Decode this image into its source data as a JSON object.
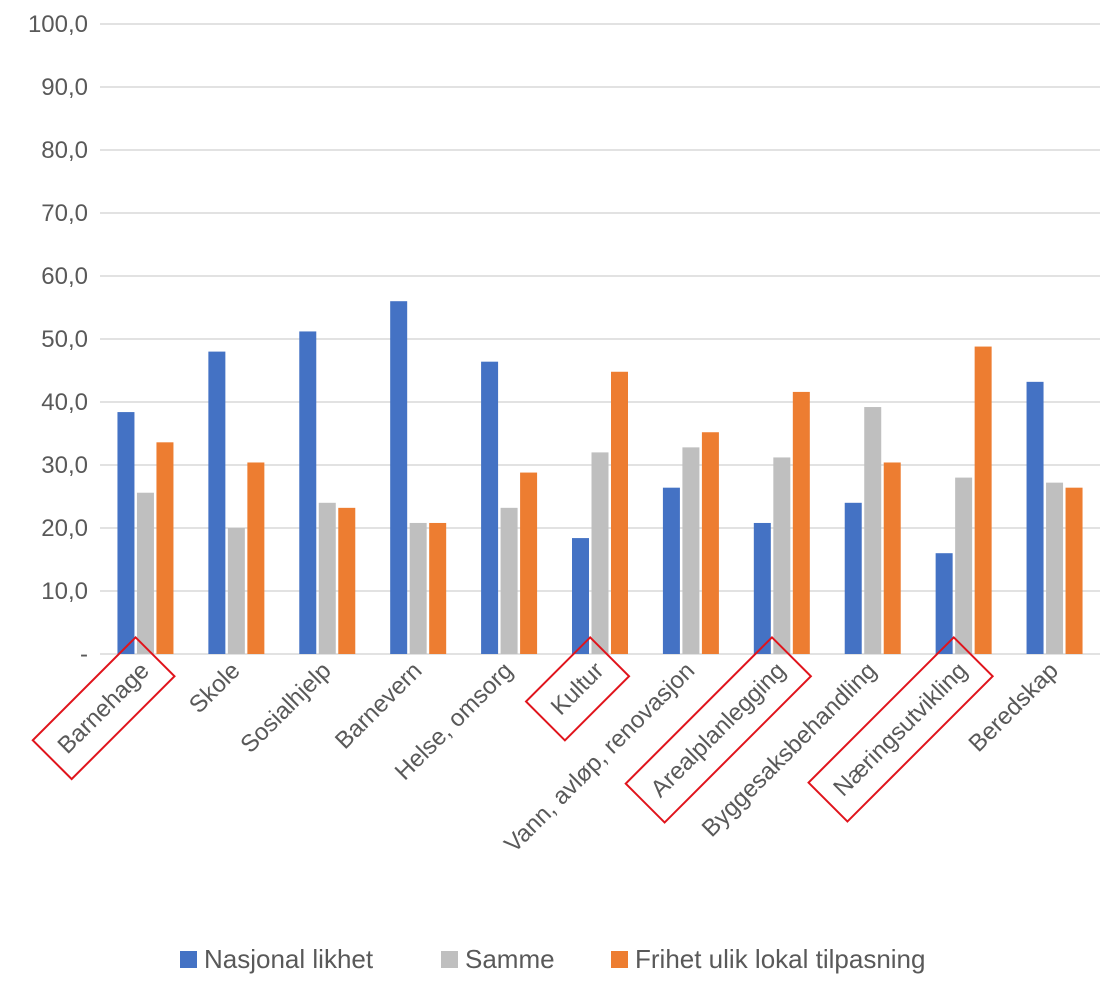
{
  "chart_data": {
    "type": "bar",
    "title": "",
    "xlabel": "",
    "ylabel": "",
    "ylim": [
      0,
      100
    ],
    "yticks": [
      "-",
      "10,0",
      "20,0",
      "30,0",
      "40,0",
      "50,0",
      "60,0",
      "70,0",
      "80,0",
      "90,0",
      "100,0"
    ],
    "grid": true,
    "legend_position": "bottom",
    "categories": [
      "Barnehage",
      "Skole",
      "Sosialhjelp",
      "Barnevern",
      "Helse, omsorg",
      "Kultur",
      "Vann, avløp, renovasjon",
      "Arealplanlegging",
      "Byggesaksbehandling",
      "Næringsutvikling",
      "Beredskap"
    ],
    "highlighted_categories": [
      "Barnehage",
      "Kultur",
      "Arealplanlegging",
      "Næringsutvikling"
    ],
    "highlight_color": "#e0141c",
    "series": [
      {
        "name": "Nasjonal likhet",
        "color": "#4472c4",
        "values": [
          38.4,
          48.0,
          51.2,
          56.0,
          46.4,
          18.4,
          26.4,
          20.8,
          24.0,
          16.0,
          43.2
        ]
      },
      {
        "name": "Samme",
        "color": "#bfbfbf",
        "values": [
          25.6,
          20.0,
          24.0,
          20.8,
          23.2,
          32.0,
          32.8,
          31.2,
          39.2,
          28.0,
          27.2
        ]
      },
      {
        "name": "Frihet ulik lokal tilpasning",
        "color": "#ed7d31",
        "values": [
          33.6,
          30.4,
          23.2,
          20.8,
          28.8,
          44.8,
          35.2,
          41.6,
          30.4,
          48.8,
          26.4
        ]
      }
    ]
  }
}
